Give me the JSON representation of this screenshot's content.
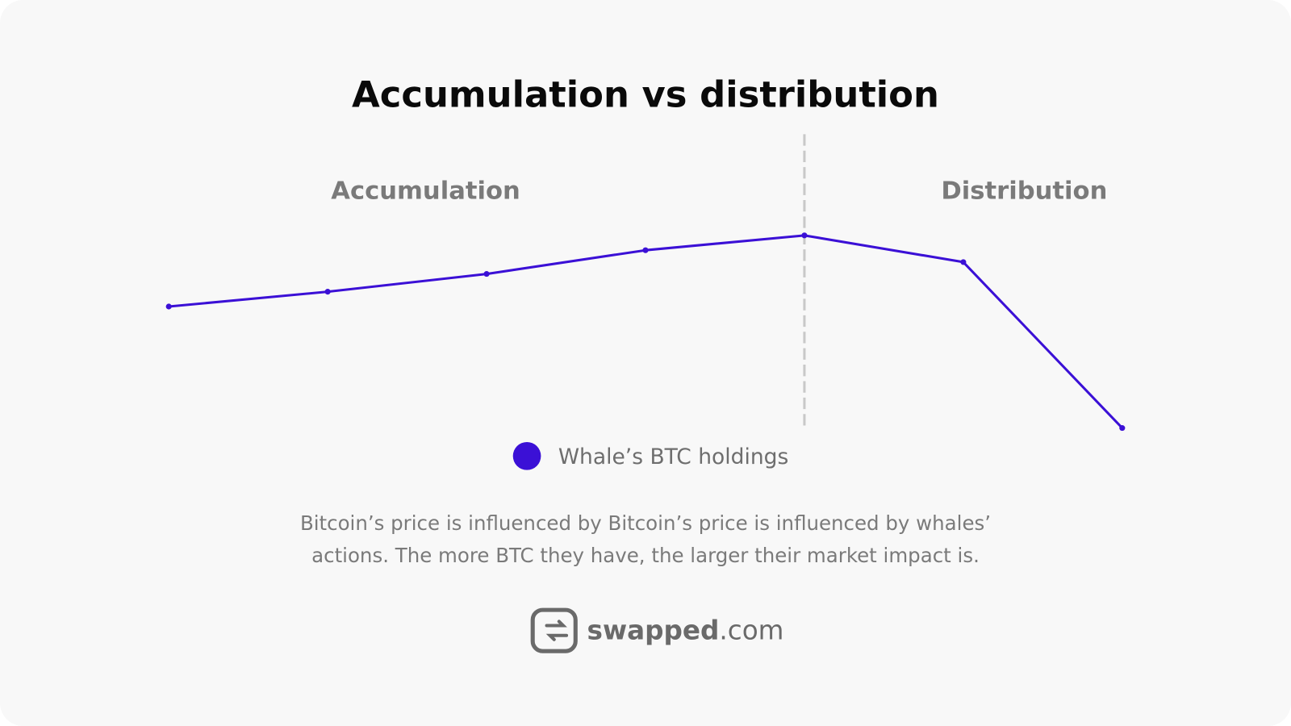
{
  "chart_data": {
    "type": "line",
    "title": "Accumulation vs distribution",
    "annotations": [
      "Accumulation",
      "Distribution"
    ],
    "categories": [
      null,
      null,
      null,
      null,
      null,
      null,
      null
    ],
    "series": [
      {
        "name": "Whale’s BTC holdings",
        "color": "#3b10d6",
        "values": [
          41,
          46,
          52,
          60,
          65,
          56,
          0
        ]
      }
    ],
    "ylim": [
      0,
      100
    ],
    "grid": false
  },
  "description": [
    "Bitcoin’s price is influenced by Bitcoin’s price is influenced by whales’",
    "actions. The more BTC they have, the larger their market impact is."
  ],
  "brand": {
    "name": "swapped",
    "suffix": ".com"
  }
}
